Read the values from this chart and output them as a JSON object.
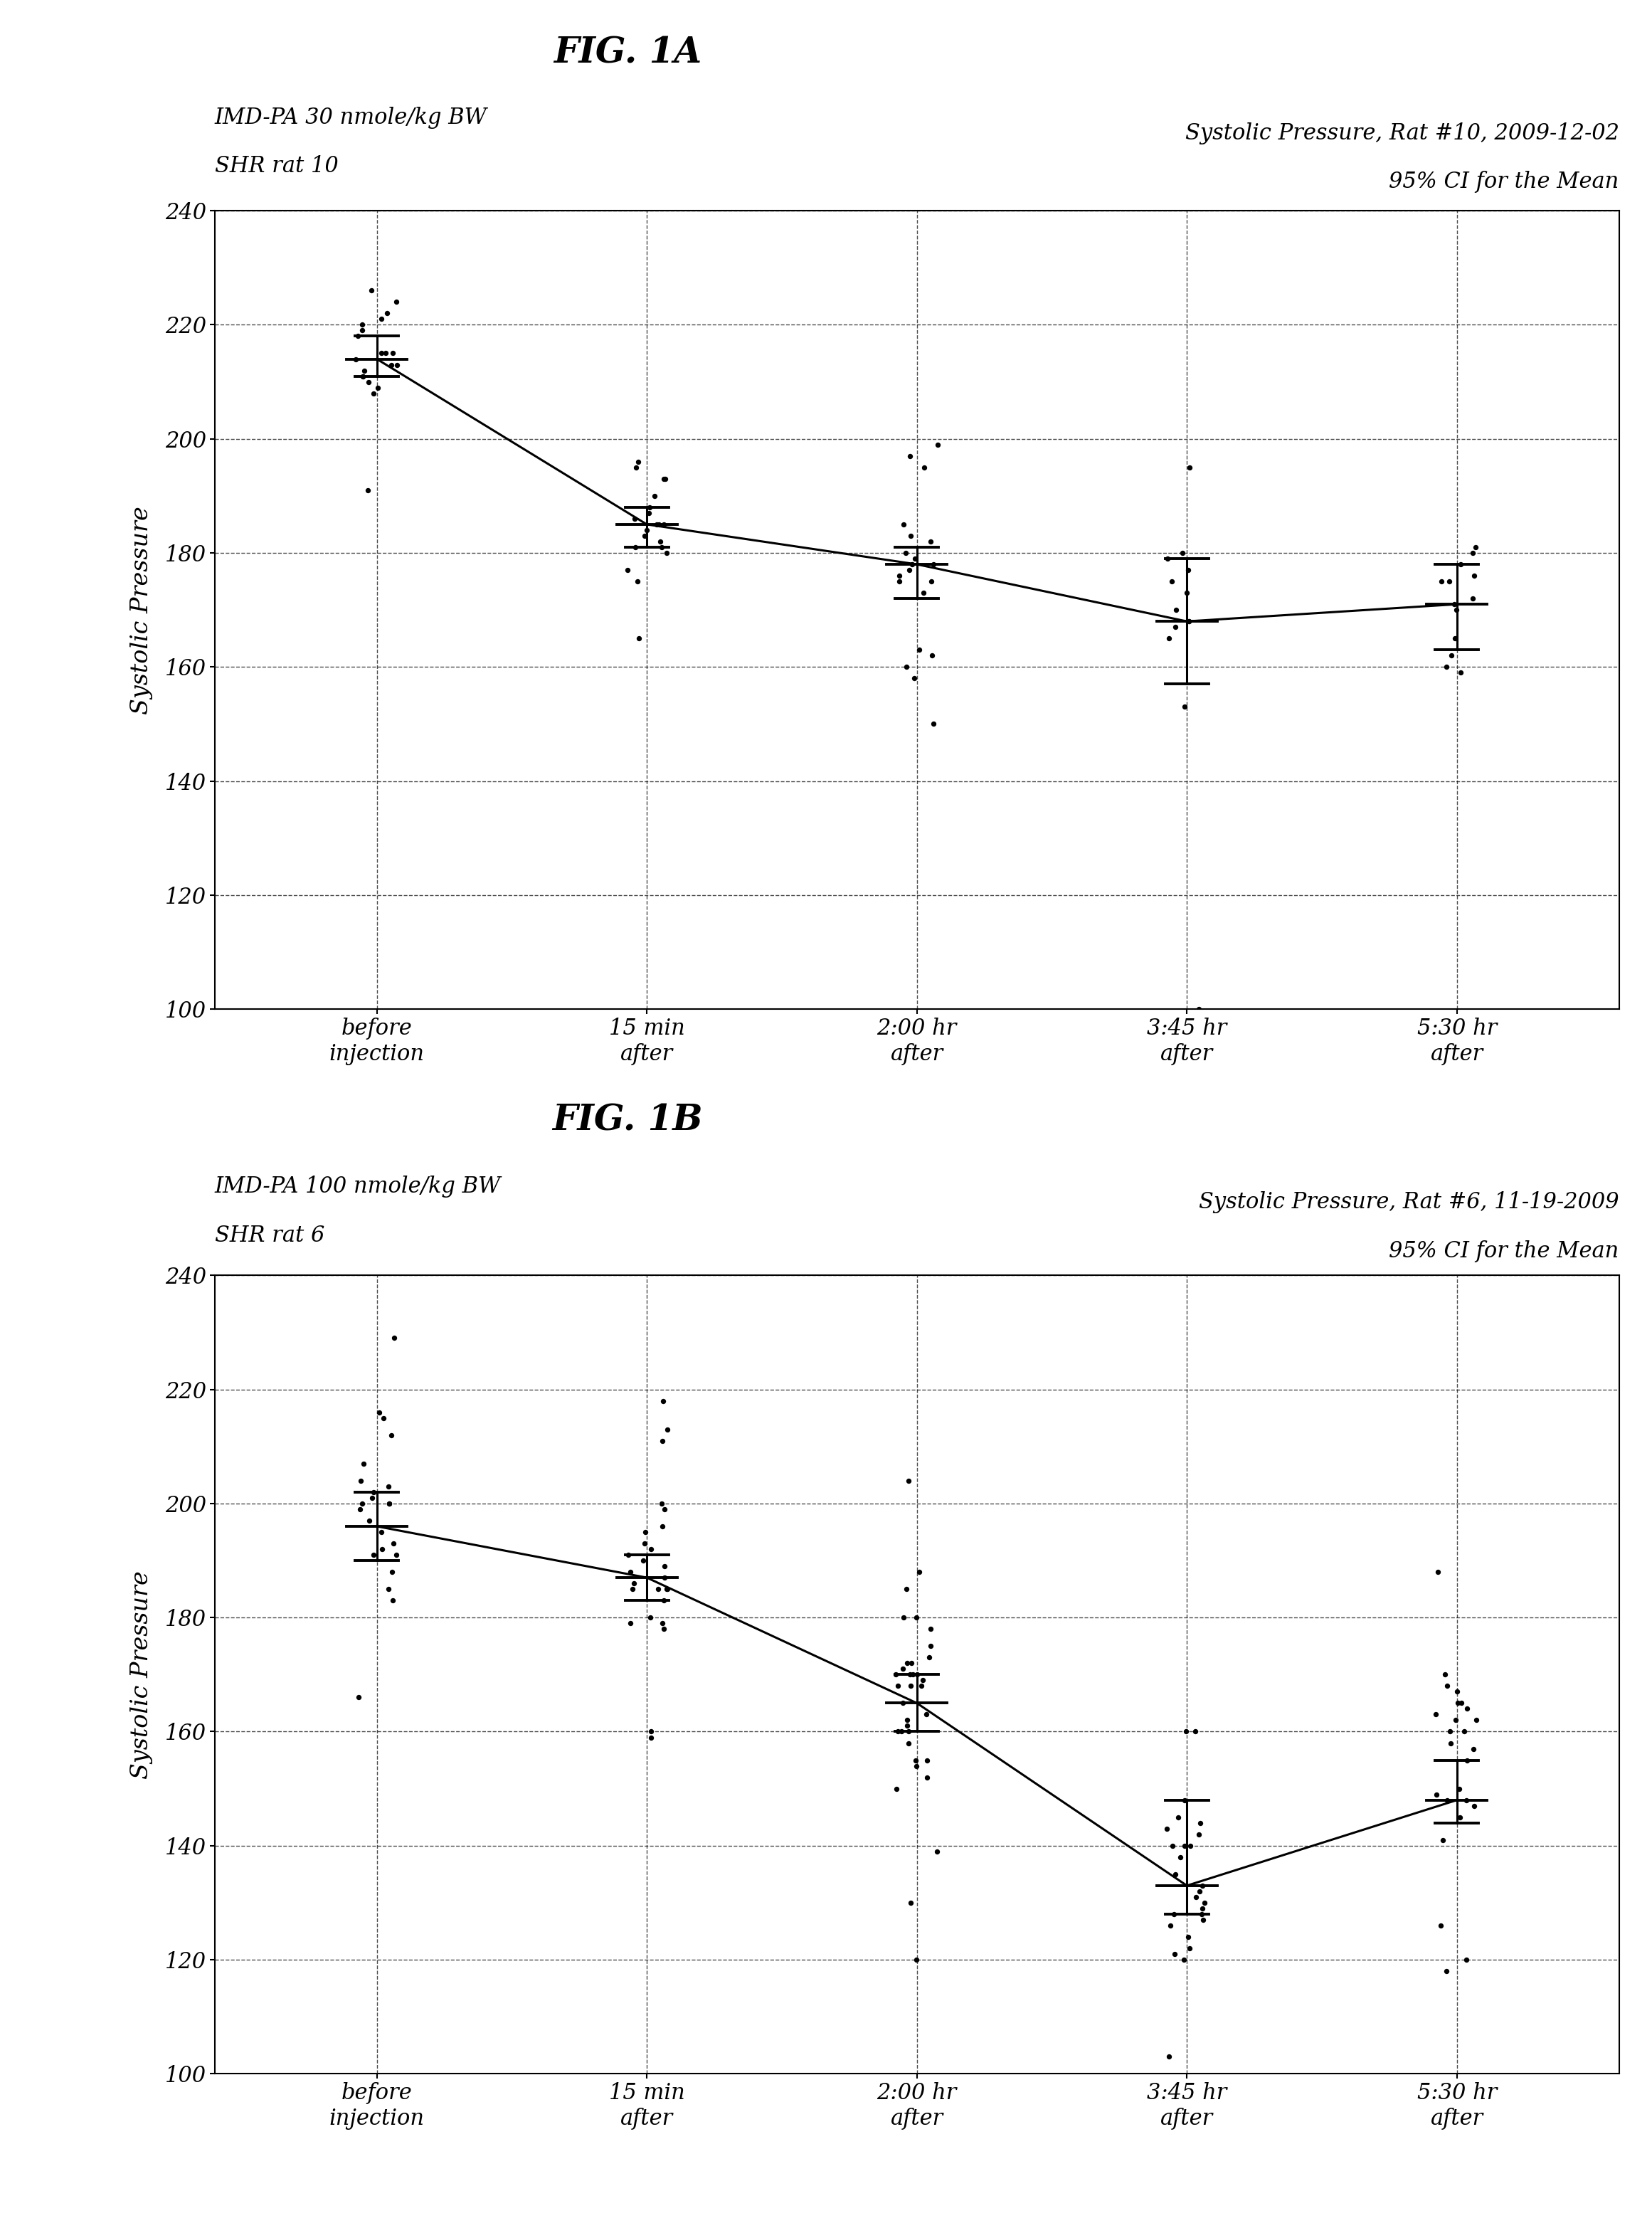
{
  "fig_title_A": "FIG. 1A",
  "fig_title_B": "FIG. 1B",
  "label_top_left_A1": "IMD-PA 30 nmole/kg BW",
  "label_top_left_A2": "SHR rat 10",
  "label_top_right_A1": "Systolic Pressure, Rat #10, 2009-12-02",
  "label_top_right_A2": "95% CI for the Mean",
  "label_top_left_B1": "IMD-PA 100 nmole/kg BW",
  "label_top_left_B2": "SHR rat 6",
  "label_top_right_B1": "Systolic Pressure, Rat #6, 11-19-2009",
  "label_top_right_B2": "95% CI for the Mean",
  "ylabel": "Systolic Pressure",
  "xtick_labels": [
    "before\ninjection",
    "15 min\nafter",
    "2:00 hr\nafter",
    "3:45 hr\nafter",
    "5:30 hr\nafter"
  ],
  "ylim": [
    100,
    240
  ],
  "yticks": [
    100,
    120,
    140,
    160,
    180,
    200,
    220,
    240
  ],
  "background_color": "#ffffff",
  "plotA_scatter": [
    [
      226,
      224,
      222,
      221,
      220,
      219,
      218,
      215,
      215,
      215,
      214,
      213,
      213,
      212,
      211,
      211,
      210,
      209,
      208,
      191
    ],
    [
      196,
      195,
      193,
      193,
      190,
      188,
      187,
      186,
      185,
      185,
      185,
      184,
      183,
      182,
      181,
      181,
      180,
      177,
      175,
      165
    ],
    [
      199,
      197,
      195,
      185,
      183,
      182,
      180,
      179,
      178,
      178,
      177,
      176,
      175,
      175,
      173,
      163,
      162,
      160,
      158,
      150
    ],
    [
      195,
      180,
      179,
      177,
      175,
      173,
      170,
      168,
      168,
      167,
      165,
      153,
      100
    ],
    [
      181,
      180,
      178,
      176,
      175,
      175,
      172,
      171,
      170,
      165,
      162,
      160,
      159
    ]
  ],
  "plotA_means": [
    214,
    185,
    178,
    168,
    171
  ],
  "plotA_ci_low": [
    211,
    181,
    172,
    157,
    163
  ],
  "plotA_ci_high": [
    218,
    188,
    181,
    179,
    178
  ],
  "plotB_scatter": [
    [
      229,
      216,
      215,
      212,
      207,
      204,
      203,
      202,
      201,
      200,
      200,
      200,
      199,
      197,
      195,
      193,
      192,
      191,
      191,
      188,
      185,
      183,
      166
    ],
    [
      218,
      213,
      211,
      200,
      199,
      196,
      195,
      193,
      192,
      191,
      190,
      189,
      188,
      187,
      186,
      185,
      185,
      185,
      185,
      183,
      180,
      179,
      179,
      178,
      160,
      159
    ],
    [
      204,
      188,
      185,
      180,
      180,
      178,
      175,
      173,
      172,
      172,
      171,
      170,
      170,
      170,
      170,
      169,
      168,
      168,
      168,
      165,
      163,
      162,
      161,
      160,
      160,
      160,
      158,
      155,
      155,
      154,
      152,
      150,
      139,
      130,
      120
    ],
    [
      160,
      160,
      148,
      145,
      144,
      143,
      142,
      140,
      140,
      140,
      138,
      135,
      133,
      132,
      131,
      130,
      129,
      128,
      128,
      127,
      126,
      124,
      122,
      121,
      120,
      103
    ],
    [
      188,
      170,
      168,
      167,
      165,
      165,
      164,
      163,
      162,
      162,
      160,
      160,
      158,
      157,
      155,
      150,
      149,
      148,
      148,
      147,
      145,
      141,
      126,
      120,
      118
    ]
  ],
  "plotB_means": [
    196,
    187,
    165,
    133,
    148
  ],
  "plotB_ci_low": [
    190,
    183,
    160,
    128,
    144
  ],
  "plotB_ci_high": [
    202,
    191,
    170,
    148,
    155
  ]
}
